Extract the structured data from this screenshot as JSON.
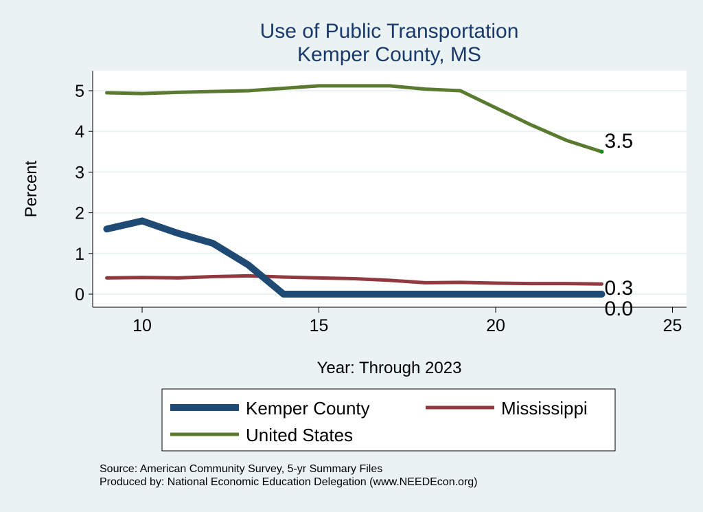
{
  "chart_data": {
    "type": "line",
    "title": "Use of Public Transportation",
    "subtitle": "Kemper County, MS",
    "xlabel": "Year: Through 2023",
    "ylabel": "Percent",
    "xlim": [
      8.5,
      25.5
    ],
    "ylim": [
      -0.3,
      5.5
    ],
    "xticks": [
      10,
      15,
      20,
      25
    ],
    "yticks": [
      0,
      1,
      2,
      3,
      4,
      5
    ],
    "grid": true,
    "legend_position": "bottom",
    "x": [
      9,
      10,
      11,
      12,
      13,
      14,
      15,
      16,
      17,
      18,
      19,
      20,
      21,
      22,
      23
    ],
    "series": [
      {
        "name": "Kemper County",
        "color": "#1f4a74",
        "values": [
          1.6,
          1.8,
          1.5,
          1.25,
          0.72,
          0,
          0,
          0,
          0,
          0,
          0,
          0,
          0,
          0,
          0
        ],
        "end_label": "0.0"
      },
      {
        "name": "Mississippi",
        "color": "#903a3f",
        "values": [
          0.4,
          0.41,
          0.4,
          0.43,
          0.45,
          0.42,
          0.4,
          0.38,
          0.34,
          0.28,
          0.29,
          0.27,
          0.26,
          0.26,
          0.25
        ],
        "end_label": "0.3"
      },
      {
        "name": "United States",
        "color": "#5a7a30",
        "values": [
          4.95,
          4.93,
          4.96,
          4.98,
          5.0,
          5.06,
          5.12,
          5.12,
          5.12,
          5.04,
          5.0,
          4.58,
          4.16,
          3.78,
          3.5
        ],
        "end_label": "3.5"
      }
    ]
  },
  "notes": {
    "source": "Source: American Community Survey, 5-yr Summary Files",
    "produced": "Produced by: National Economic Education Delegation (www.NEEDEcon.org)"
  }
}
